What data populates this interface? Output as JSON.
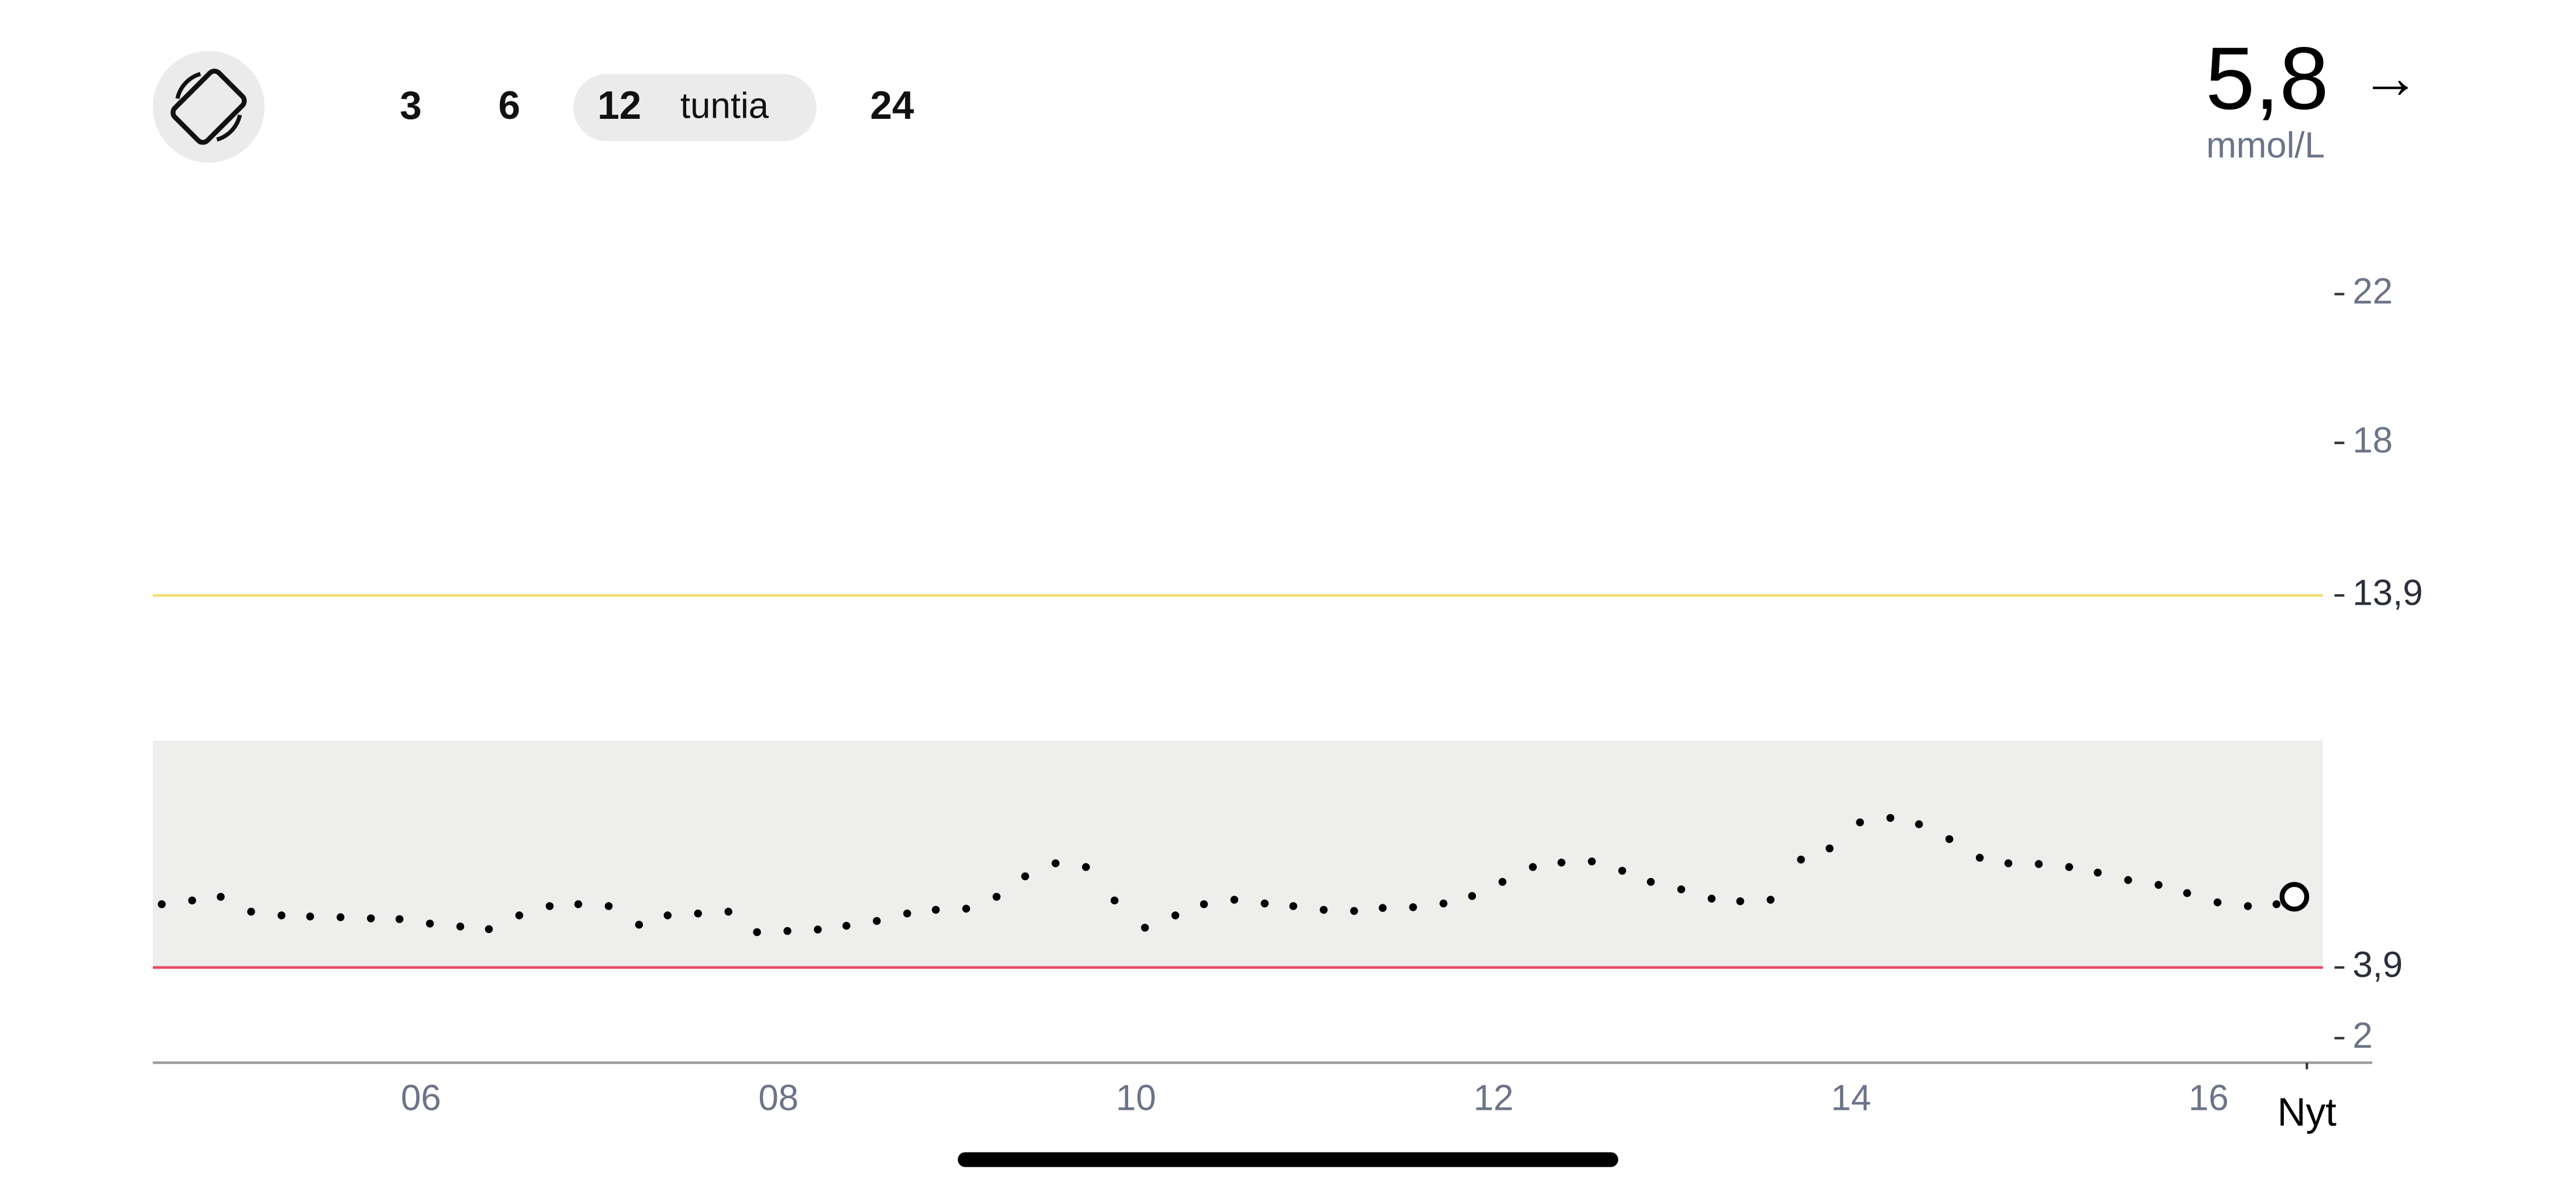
{
  "header": {
    "ranges": [
      "3",
      "6",
      "12",
      "24"
    ],
    "range_unit": "tuntia",
    "selected_range": 2,
    "current_value": "5,8",
    "trend": "→",
    "unit": "mmol/L"
  },
  "chart_data": {
    "type": "line",
    "x": [
      4.55,
      4.72,
      4.88,
      5.05,
      5.22,
      5.38,
      5.55,
      5.72,
      5.88,
      6.05,
      6.22,
      6.38,
      6.55,
      6.72,
      6.88,
      7.05,
      7.22,
      7.38,
      7.55,
      7.72,
      7.88,
      8.05,
      8.22,
      8.38,
      8.55,
      8.72,
      8.88,
      9.05,
      9.22,
      9.38,
      9.55,
      9.72,
      9.88,
      10.05,
      10.22,
      10.38,
      10.55,
      10.72,
      10.88,
      11.05,
      11.22,
      11.38,
      11.55,
      11.72,
      11.88,
      12.05,
      12.22,
      12.38,
      12.55,
      12.72,
      12.88,
      13.05,
      13.22,
      13.38,
      13.55,
      13.72,
      13.88,
      14.05,
      14.22,
      14.38,
      14.55,
      14.72,
      14.88,
      15.05,
      15.22,
      15.38,
      15.55,
      15.72,
      15.88,
      16.05,
      16.22,
      16.38,
      16.48
    ],
    "series": [
      {
        "color": "#000000",
        "values": [
          5.6,
          5.7,
          5.8,
          5.4,
          5.3,
          5.27,
          5.25,
          5.22,
          5.2,
          5.08,
          5.0,
          4.93,
          5.3,
          5.55,
          5.6,
          5.55,
          5.05,
          5.3,
          5.35,
          5.4,
          4.85,
          4.88,
          4.92,
          5.02,
          5.15,
          5.35,
          5.45,
          5.48,
          5.8,
          6.35,
          6.7,
          6.6,
          5.7,
          4.97,
          5.3,
          5.6,
          5.72,
          5.62,
          5.55,
          5.45,
          5.42,
          5.5,
          5.52,
          5.62,
          5.82,
          6.2,
          6.6,
          6.72,
          6.75,
          6.5,
          6.2,
          6.0,
          5.75,
          5.68,
          5.72,
          6.8,
          7.1,
          7.8,
          7.92,
          7.75,
          7.35,
          6.85,
          6.7,
          6.68,
          6.6,
          6.45,
          6.25,
          6.12,
          5.9,
          5.65,
          5.55,
          5.6,
          5.8
        ]
      }
    ],
    "xlim": [
      4.5,
      16.64
    ],
    "xticks": [
      {
        "value": 6,
        "label": "06"
      },
      {
        "value": 8,
        "label": "08"
      },
      {
        "value": 10,
        "label": "10"
      },
      {
        "value": 12,
        "label": "12"
      },
      {
        "value": 14,
        "label": "14"
      },
      {
        "value": 16,
        "label": "16"
      },
      {
        "value": 16.55,
        "label": "Nyt"
      }
    ],
    "ylim": [
      1.34,
      23
    ],
    "yticks": [
      2,
      {
        "value": 3.9,
        "label": "3,9"
      },
      {
        "value": 13.9,
        "label": "13,9"
      },
      18,
      22
    ],
    "target_range": {
      "low": 3.9,
      "high": 10,
      "color": "#eeeeed"
    },
    "thresholds": [
      {
        "value": 13.9,
        "color": "#f0de74"
      },
      {
        "value": 3.9,
        "color": "#e94b62"
      }
    ]
  }
}
